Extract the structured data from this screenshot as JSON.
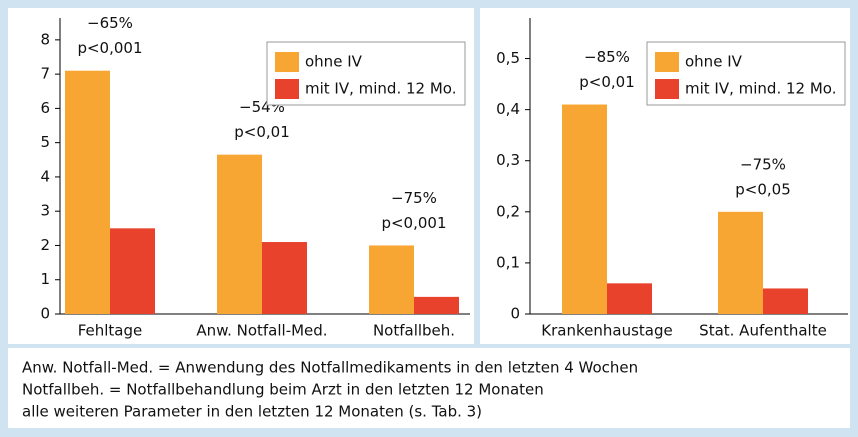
{
  "chart_data": [
    {
      "type": "bar",
      "categories": [
        "Fehltage",
        "Anw. Notfall-Med.",
        "Notfallbeh."
      ],
      "series": [
        {
          "name": "ohne IV",
          "color": "#f7a634",
          "values": [
            7.1,
            4.65,
            2.0
          ]
        },
        {
          "name": "mit IV, mind. 12 Mo.",
          "color": "#e8412c",
          "values": [
            2.5,
            2.1,
            0.5
          ]
        }
      ],
      "annotations": [
        {
          "change": "−65%",
          "p": "p<0,001"
        },
        {
          "change": "−54%",
          "p": "p<0,01"
        },
        {
          "change": "−75%",
          "p": "p<0,001"
        }
      ],
      "ylim": [
        0,
        8.2
      ],
      "yticks": [
        0,
        1,
        2,
        3,
        4,
        5,
        6,
        7,
        8
      ],
      "legend": "upper right"
    },
    {
      "type": "bar",
      "categories": [
        "Krankenhaustage",
        "Stat. Aufenthalte"
      ],
      "series": [
        {
          "name": "ohne IV",
          "color": "#f7a634",
          "values": [
            0.41,
            0.2
          ]
        },
        {
          "name": "mit IV, mind. 12 Mo.",
          "color": "#e8412c",
          "values": [
            0.06,
            0.05
          ]
        }
      ],
      "annotations": [
        {
          "change": "−85%",
          "p": "p<0,01"
        },
        {
          "change": "−75%",
          "p": "p<0,05"
        }
      ],
      "ylim": [
        0,
        0.55
      ],
      "yticks": [
        0,
        {
          "value": 0.1,
          "label": "0,1"
        },
        {
          "value": 0.2,
          "label": "0,2"
        },
        {
          "value": 0.3,
          "label": "0,3"
        },
        {
          "value": 0.4,
          "label": "0,4"
        },
        {
          "value": 0.5,
          "label": "0,5"
        }
      ],
      "legend": "upper right"
    }
  ],
  "footnote": [
    "Anw. Notfall-Med. = Anwendung des Notfallmedikaments in den letzten 4 Wochen",
    "Notfallbeh. = Notfallbehandlung beim Arzt in den letzten 12 Monaten",
    "alle weiteren Parameter in den letzten 12 Monaten (s. Tab. 3)"
  ]
}
